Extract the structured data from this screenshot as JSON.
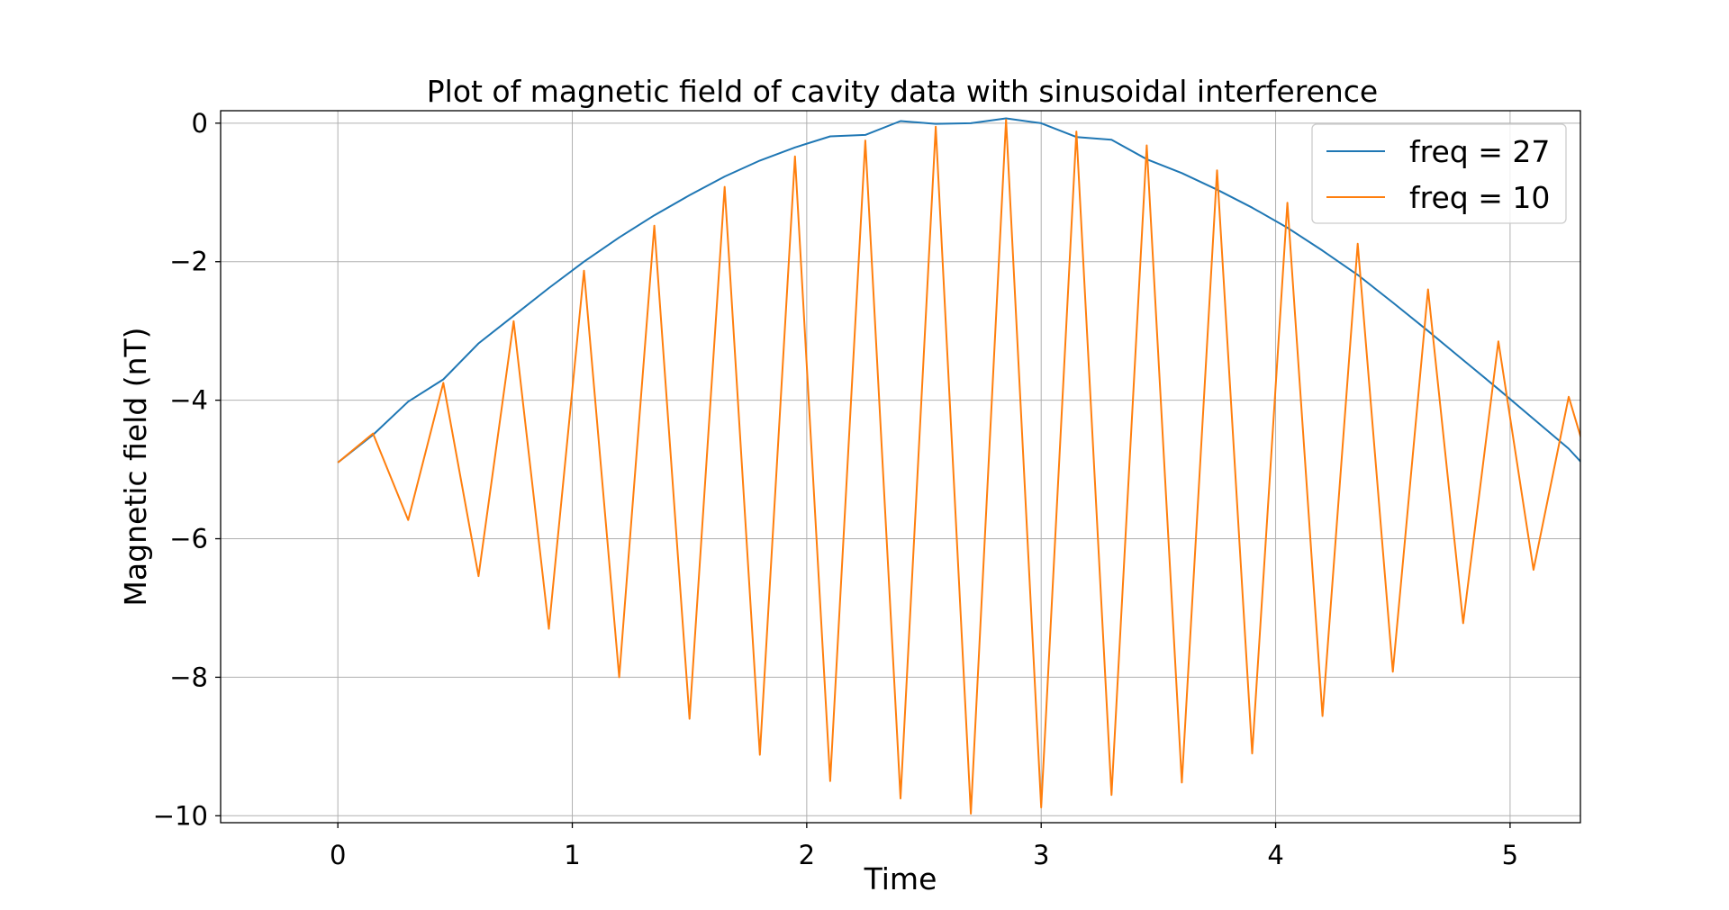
{
  "chart_data": {
    "type": "line",
    "title": "Plot of magnetic field of cavity data with sinusoidal interference",
    "xlabel": "Time",
    "ylabel": "Magnetic field (nT)",
    "xlim": [
      -0.5,
      5.3
    ],
    "ylim": [
      -10.1,
      0.18
    ],
    "xticks": [
      0,
      1,
      2,
      3,
      4,
      5
    ],
    "xtick_labels": [
      "0",
      "1",
      "2",
      "3",
      "4",
      "5"
    ],
    "yticks": [
      0,
      -2,
      -4,
      -6,
      -8,
      -10
    ],
    "ytick_labels": [
      "0",
      "−2",
      "−4",
      "−6",
      "−8",
      "−10"
    ],
    "grid": true,
    "legend_position": "top-right",
    "series": [
      {
        "name": "freq = 27",
        "color": "#1f77b4",
        "x": [
          0.0,
          0.15,
          0.3,
          0.45,
          0.6,
          0.75,
          0.9,
          1.05,
          1.2,
          1.35,
          1.5,
          1.65,
          1.8,
          1.95,
          2.1,
          2.25,
          2.4,
          2.55,
          2.7,
          2.85,
          3.0,
          3.15,
          3.3,
          3.45,
          3.6,
          3.75,
          3.9,
          4.05,
          4.2,
          4.35,
          4.5,
          4.65,
          4.8,
          4.95,
          5.1,
          5.25,
          5.4
        ],
        "y": [
          -4.9,
          -4.5,
          -4.02,
          -3.7,
          -3.18,
          -2.78,
          -2.38,
          -2.0,
          -1.65,
          -1.33,
          -1.04,
          -0.77,
          -0.54,
          -0.35,
          -0.19,
          -0.17,
          0.03,
          -0.01,
          0.0,
          0.07,
          0.0,
          -0.2,
          -0.24,
          -0.52,
          -0.72,
          -0.96,
          -1.22,
          -1.51,
          -1.84,
          -2.19,
          -2.59,
          -3.0,
          -3.42,
          -3.84,
          -4.27,
          -4.7,
          -5.25
        ]
      },
      {
        "name": "freq = 10",
        "color": "#ff7f0e",
        "x": [
          0.0,
          0.15,
          0.3,
          0.45,
          0.6,
          0.75,
          0.9,
          1.05,
          1.2,
          1.35,
          1.5,
          1.65,
          1.8,
          1.95,
          2.1,
          2.25,
          2.4,
          2.55,
          2.7,
          2.85,
          3.0,
          3.15,
          3.3,
          3.45,
          3.6,
          3.75,
          3.9,
          4.05,
          4.2,
          4.35,
          4.5,
          4.65,
          4.8,
          4.95,
          5.1,
          5.25,
          5.4
        ],
        "y": [
          -4.9,
          -4.48,
          -5.73,
          -3.75,
          -6.54,
          -2.86,
          -7.3,
          -2.13,
          -8.0,
          -1.48,
          -8.6,
          -0.92,
          -9.12,
          -0.48,
          -9.5,
          -0.25,
          -9.75,
          -0.05,
          -9.97,
          0.05,
          -9.88,
          -0.12,
          -9.7,
          -0.32,
          -9.52,
          -0.68,
          -9.1,
          -1.15,
          -8.56,
          -1.74,
          -7.92,
          -2.4,
          -7.22,
          -3.15,
          -6.45,
          -3.95,
          -5.65
        ]
      }
    ]
  }
}
